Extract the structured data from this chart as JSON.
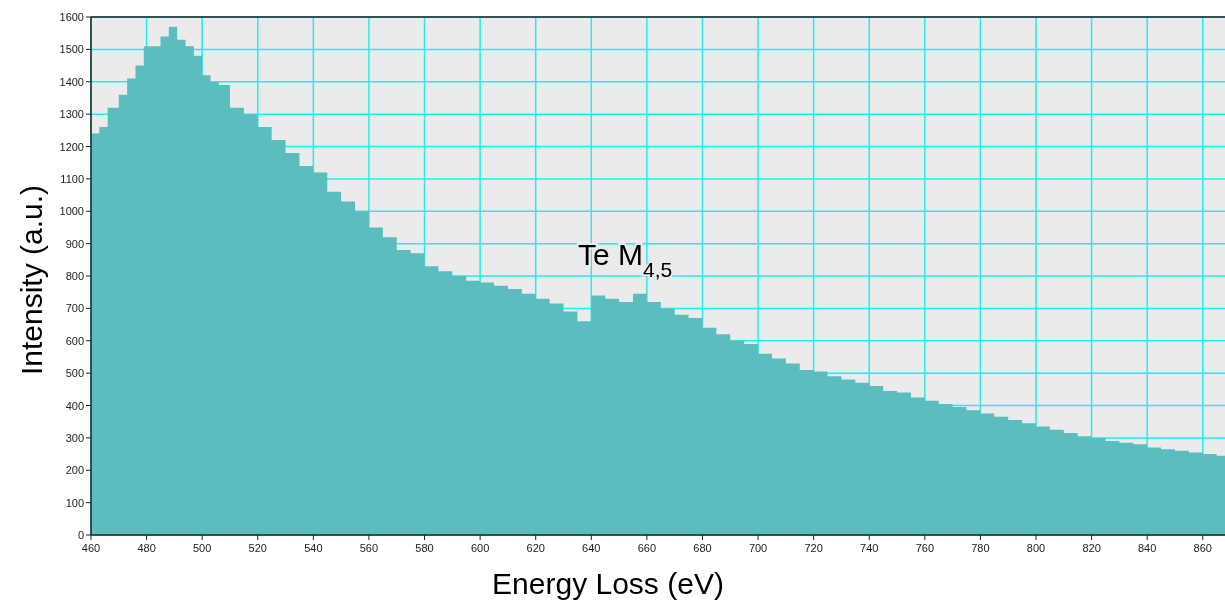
{
  "chart_data": {
    "type": "area",
    "xlabel": "Energy Loss (eV)",
    "ylabel": "Intensity (a.u.)",
    "x": [
      460,
      463,
      466,
      470,
      473,
      476,
      479,
      482,
      485,
      488,
      491,
      494,
      497,
      500,
      503,
      506,
      510,
      515,
      520,
      525,
      530,
      535,
      540,
      545,
      550,
      555,
      560,
      565,
      570,
      575,
      580,
      585,
      590,
      595,
      600,
      605,
      610,
      615,
      620,
      625,
      630,
      635,
      640,
      645,
      650,
      655,
      660,
      665,
      670,
      675,
      680,
      685,
      690,
      695,
      700,
      705,
      710,
      715,
      720,
      725,
      730,
      735,
      740,
      745,
      750,
      755,
      760,
      765,
      770,
      775,
      780,
      785,
      790,
      795,
      800,
      805,
      810,
      815,
      820,
      825,
      830,
      835,
      840,
      845,
      850,
      855,
      860,
      865,
      868
    ],
    "series": [
      {
        "color": "#5bbdbd",
        "values": [
          1240,
          1260,
          1320,
          1360,
          1410,
          1450,
          1510,
          1510,
          1540,
          1570,
          1530,
          1510,
          1480,
          1420,
          1400,
          1390,
          1320,
          1300,
          1260,
          1220,
          1180,
          1140,
          1120,
          1060,
          1030,
          1000,
          950,
          920,
          880,
          870,
          830,
          815,
          800,
          785,
          780,
          770,
          760,
          745,
          730,
          715,
          690,
          660,
          740,
          730,
          720,
          745,
          720,
          700,
          680,
          670,
          640,
          620,
          600,
          590,
          560,
          545,
          530,
          510,
          505,
          490,
          480,
          470,
          460,
          445,
          440,
          425,
          415,
          405,
          395,
          385,
          375,
          365,
          355,
          345,
          335,
          325,
          315,
          305,
          300,
          290,
          285,
          280,
          270,
          265,
          260,
          255,
          250,
          245,
          240
        ]
      }
    ],
    "xlim": [
      460,
      868
    ],
    "ylim": [
      0,
      1600
    ],
    "xticks": [
      460,
      480,
      500,
      520,
      540,
      560,
      580,
      600,
      620,
      640,
      660,
      680,
      700,
      720,
      740,
      760,
      780,
      800,
      820,
      840,
      860
    ],
    "yticks": [
      0,
      100,
      200,
      300,
      400,
      500,
      600,
      700,
      800,
      900,
      1000,
      1100,
      1200,
      1300,
      1400,
      1500,
      1600
    ],
    "grid": true,
    "annotations": [
      "Te M$_{4,5}$"
    ]
  }
}
